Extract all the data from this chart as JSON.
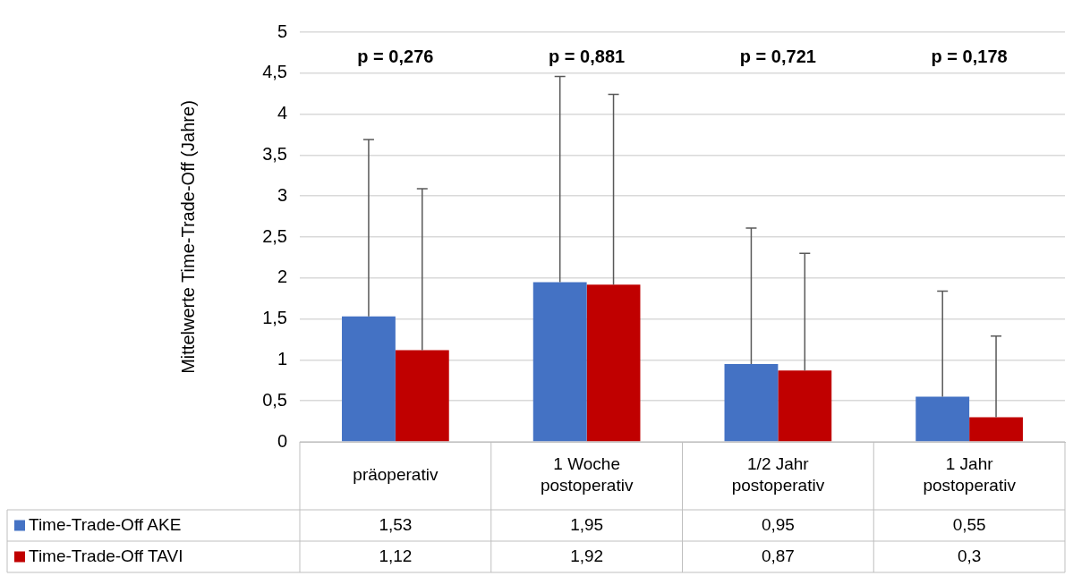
{
  "chart_data": {
    "type": "bar",
    "ylabel": "Mittelwerte Time-Trade-Off (Jahre)",
    "categories": [
      "präoperativ",
      "1 Woche postoperativ",
      "1/2 Jahr postoperativ",
      "1 Jahr postoperativ"
    ],
    "series": [
      {
        "name": "Time-Trade-Off AKE",
        "color": "#4472c4",
        "values": [
          1.53,
          1.95,
          0.95,
          0.55
        ],
        "value_labels": [
          "1,53",
          "1,95",
          "0,95",
          "0,55"
        ],
        "errors": [
          [
            1.53,
            3.69
          ],
          [
            1.95,
            4.46
          ],
          [
            0.95,
            2.61
          ],
          [
            0.55,
            1.84
          ]
        ]
      },
      {
        "name": "Time-Trade-Off TAVI",
        "color": "#c00000",
        "values": [
          1.12,
          1.92,
          0.87,
          0.3
        ],
        "value_labels": [
          "1,12",
          "1,92",
          "0,87",
          "0,3"
        ],
        "errors": [
          [
            1.12,
            3.09
          ],
          [
            1.92,
            4.24
          ],
          [
            0.87,
            2.3
          ],
          [
            0.3,
            1.29
          ]
        ]
      }
    ],
    "ylim": [
      0,
      5
    ],
    "yticks": [
      0,
      {
        "value": 0.5,
        "label": "0,5"
      },
      1,
      {
        "value": 1.5,
        "label": "1,5"
      },
      2,
      {
        "value": 2.5,
        "label": "2,5"
      },
      3,
      {
        "value": 3.5,
        "label": "3,5"
      },
      4,
      {
        "value": 4.5,
        "label": "4,5"
      },
      5
    ],
    "grid": "y",
    "legend": "bottom left",
    "annotations": [
      "p = 0,276",
      "p = 0,881",
      "p = 0,721",
      "p = 0,178"
    ]
  }
}
